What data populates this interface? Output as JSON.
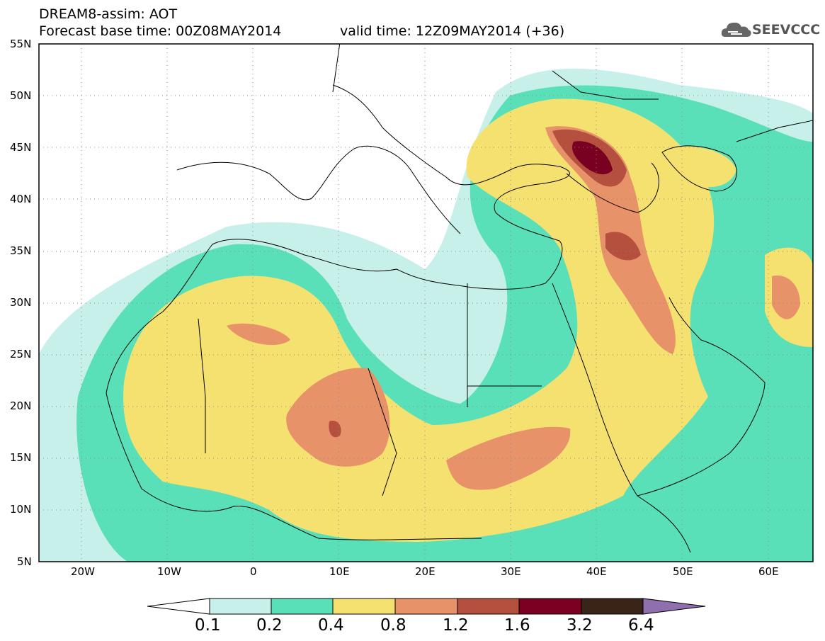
{
  "header": {
    "line1": "DREAM8-assim: AOT",
    "line2": "Forecast base time: 00Z08MAY2014",
    "line3": "valid time: 12Z09MAY2014 (+36)"
  },
  "logo": {
    "text": "SEEVCCC",
    "icon": "cloud-icon",
    "color": "#555555"
  },
  "map": {
    "lat_range": [
      "5N",
      "55N"
    ],
    "lon_range": [
      "25W",
      "65E"
    ],
    "lat_ticks": [
      "55N",
      "50N",
      "45N",
      "40N",
      "35N",
      "30N",
      "25N",
      "20N",
      "15N",
      "10N",
      "5N"
    ],
    "lon_ticks": [
      "20W",
      "10W",
      "0",
      "10E",
      "20E",
      "30E",
      "40E",
      "50E",
      "60E"
    ],
    "grid": "dotted"
  },
  "legend": {
    "labels": [
      "0.1",
      "0.2",
      "0.4",
      "0.8",
      "1.2",
      "1.6",
      "3.2",
      "6.4"
    ],
    "colors": [
      "#ffffff",
      "#c8f0ea",
      "#5ae0b8",
      "#f5e170",
      "#e8926a",
      "#b5503e",
      "#7a0022",
      "#3a2418",
      "#8f6fae"
    ]
  }
}
